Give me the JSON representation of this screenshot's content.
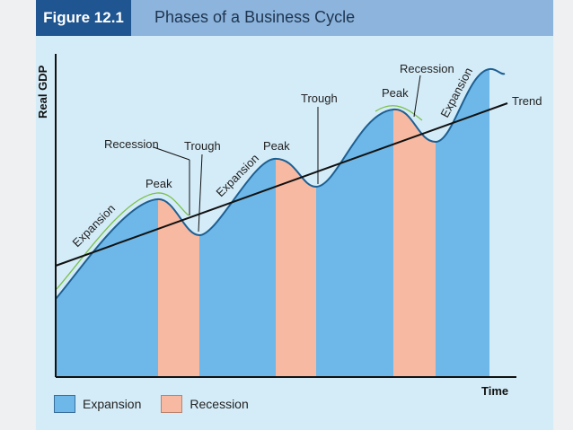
{
  "header": {
    "figure_label": "Figure 12.1",
    "title": "Phases of a Business Cycle"
  },
  "axes": {
    "y_label": "Real GDP",
    "x_label": "Time"
  },
  "annotations": {
    "recession_1": "Recession",
    "trough_1": "Trough",
    "peak_1": "Peak",
    "expansion_1": "Expansion",
    "expansion_2": "Expansion",
    "peak_2": "Peak",
    "trough_2": "Trough",
    "peak_3": "Peak",
    "recession_2": "Recession",
    "expansion_3": "Expansion",
    "trend": "Trend"
  },
  "legend": {
    "expansion": "Expansion",
    "recession": "Recession"
  },
  "colors": {
    "expansion_fill": "#6db8e8",
    "recession_fill": "#f7b9a2",
    "header_bar": "#8cb4dc",
    "figure_tab": "#1f5590",
    "background": "#d4ecf8"
  }
}
